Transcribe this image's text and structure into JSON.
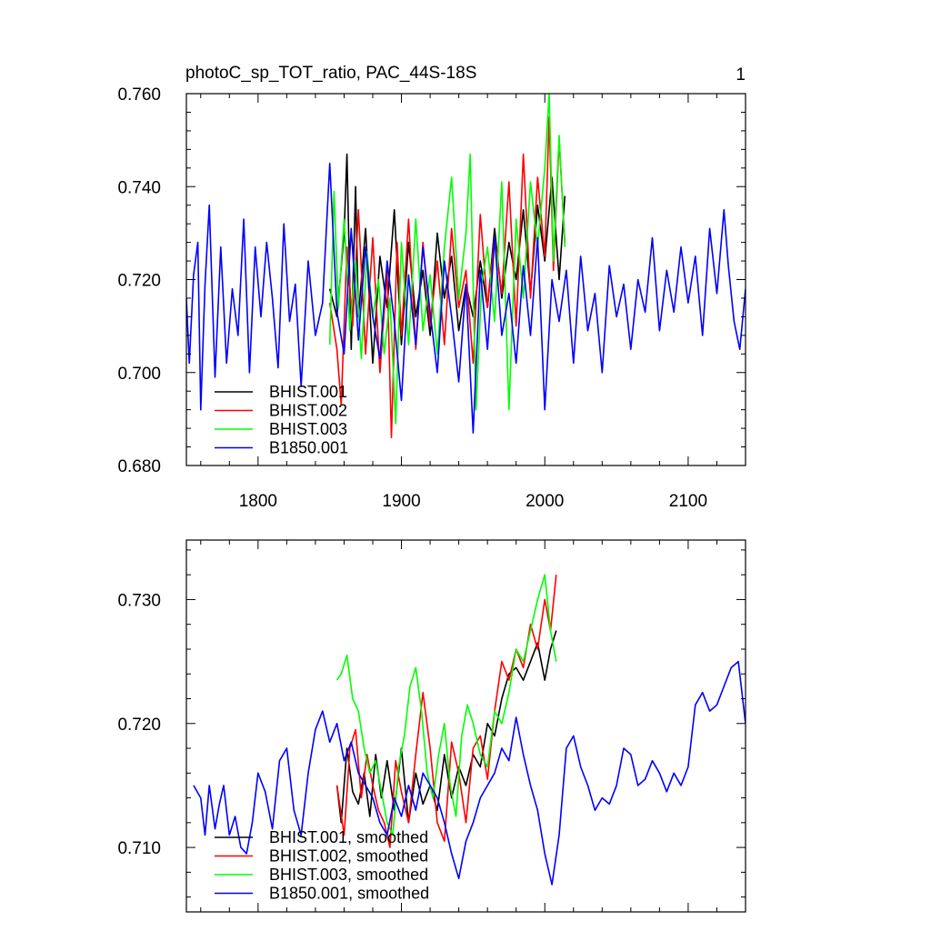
{
  "figure": {
    "panel_number": "1"
  },
  "chart_data": [
    {
      "type": "line",
      "title": "photoC_sp_TOT_ratio, PAC_44S-18S",
      "xlabel": "",
      "ylabel": "",
      "xlim": [
        1750,
        2140
      ],
      "ylim": [
        0.68,
        0.76
      ],
      "x_ticks": [
        1800,
        1900,
        2000,
        2100
      ],
      "x_tick_labels": [
        "1800",
        "1900",
        "2000",
        "2100"
      ],
      "y_ticks": [
        0.68,
        0.7,
        0.72,
        0.74,
        0.76
      ],
      "y_tick_labels": [
        "0.680",
        "0.700",
        "0.720",
        "0.740",
        "0.760"
      ],
      "grid": false,
      "legend_position": "bottom-left",
      "series": [
        {
          "name": "BHIST.001",
          "color": "#000000",
          "x": [
            1850,
            1855,
            1860,
            1862,
            1865,
            1868,
            1870,
            1875,
            1880,
            1885,
            1890,
            1895,
            1900,
            1905,
            1910,
            1915,
            1920,
            1925,
            1930,
            1935,
            1940,
            1945,
            1950,
            1955,
            1960,
            1965,
            1970,
            1975,
            1980,
            1985,
            1990,
            1995,
            2000,
            2005,
            2010,
            2014
          ],
          "values": [
            0.718,
            0.712,
            0.73,
            0.747,
            0.705,
            0.74,
            0.712,
            0.731,
            0.702,
            0.725,
            0.714,
            0.735,
            0.706,
            0.728,
            0.712,
            0.722,
            0.708,
            0.73,
            0.716,
            0.725,
            0.709,
            0.719,
            0.712,
            0.724,
            0.714,
            0.731,
            0.716,
            0.728,
            0.72,
            0.735,
            0.717,
            0.736,
            0.724,
            0.742,
            0.72,
            0.738
          ]
        },
        {
          "name": "BHIST.002",
          "color": "#ff0000",
          "x": [
            1850,
            1855,
            1858,
            1862,
            1866,
            1870,
            1875,
            1880,
            1885,
            1890,
            1893,
            1897,
            1900,
            1905,
            1910,
            1915,
            1920,
            1925,
            1930,
            1935,
            1940,
            1945,
            1950,
            1955,
            1960,
            1965,
            1970,
            1975,
            1980,
            1985,
            1990,
            1995,
            2000,
            2003,
            2006,
            2010,
            2014
          ],
          "values": [
            0.715,
            0.705,
            0.693,
            0.727,
            0.71,
            0.735,
            0.704,
            0.729,
            0.7,
            0.722,
            0.686,
            0.728,
            0.708,
            0.733,
            0.705,
            0.728,
            0.71,
            0.724,
            0.706,
            0.731,
            0.714,
            0.722,
            0.702,
            0.734,
            0.714,
            0.729,
            0.717,
            0.741,
            0.71,
            0.747,
            0.716,
            0.742,
            0.725,
            0.755,
            0.722,
            0.75,
            0.728
          ]
        },
        {
          "name": "BHIST.003",
          "color": "#00ff00",
          "x": [
            1850,
            1853,
            1856,
            1860,
            1864,
            1868,
            1872,
            1876,
            1880,
            1884,
            1888,
            1892,
            1896,
            1900,
            1905,
            1910,
            1915,
            1920,
            1925,
            1930,
            1935,
            1940,
            1945,
            1948,
            1952,
            1956,
            1960,
            1965,
            1970,
            1975,
            1980,
            1985,
            1990,
            1995,
            2000,
            2003,
            2006,
            2010,
            2014
          ],
          "values": [
            0.706,
            0.739,
            0.714,
            0.733,
            0.709,
            0.724,
            0.703,
            0.726,
            0.712,
            0.72,
            0.704,
            0.716,
            0.689,
            0.728,
            0.706,
            0.733,
            0.709,
            0.721,
            0.704,
            0.727,
            0.742,
            0.716,
            0.73,
            0.747,
            0.692,
            0.719,
            0.727,
            0.711,
            0.741,
            0.692,
            0.733,
            0.716,
            0.741,
            0.727,
            0.744,
            0.76,
            0.724,
            0.751,
            0.727
          ]
        },
        {
          "name": "B1850.001",
          "color": "#0000ff",
          "x": [
            1750,
            1752,
            1755,
            1758,
            1760,
            1763,
            1766,
            1770,
            1774,
            1778,
            1782,
            1786,
            1790,
            1794,
            1798,
            1802,
            1806,
            1810,
            1814,
            1818,
            1822,
            1826,
            1830,
            1835,
            1840,
            1845,
            1850,
            1855,
            1860,
            1865,
            1870,
            1875,
            1880,
            1885,
            1890,
            1895,
            1900,
            1905,
            1910,
            1915,
            1920,
            1925,
            1930,
            1935,
            1940,
            1945,
            1950,
            1955,
            1960,
            1965,
            1970,
            1975,
            1980,
            1985,
            1990,
            1995,
            2000,
            2005,
            2010,
            2015,
            2020,
            2025,
            2030,
            2035,
            2040,
            2045,
            2050,
            2055,
            2060,
            2065,
            2070,
            2075,
            2080,
            2085,
            2090,
            2095,
            2100,
            2105,
            2110,
            2115,
            2120,
            2125,
            2128,
            2132,
            2136,
            2140
          ],
          "values": [
            0.716,
            0.702,
            0.721,
            0.728,
            0.692,
            0.719,
            0.736,
            0.699,
            0.727,
            0.702,
            0.718,
            0.708,
            0.733,
            0.7,
            0.727,
            0.712,
            0.728,
            0.716,
            0.701,
            0.732,
            0.711,
            0.719,
            0.697,
            0.724,
            0.708,
            0.715,
            0.745,
            0.713,
            0.704,
            0.731,
            0.707,
            0.727,
            0.712,
            0.703,
            0.724,
            0.711,
            0.694,
            0.721,
            0.706,
            0.727,
            0.713,
            0.7,
            0.724,
            0.712,
            0.698,
            0.719,
            0.687,
            0.722,
            0.705,
            0.729,
            0.708,
            0.717,
            0.702,
            0.723,
            0.708,
            0.729,
            0.692,
            0.72,
            0.711,
            0.722,
            0.702,
            0.725,
            0.709,
            0.717,
            0.7,
            0.723,
            0.712,
            0.719,
            0.705,
            0.72,
            0.713,
            0.729,
            0.709,
            0.722,
            0.713,
            0.727,
            0.715,
            0.725,
            0.708,
            0.731,
            0.717,
            0.735,
            0.723,
            0.711,
            0.705,
            0.718
          ]
        }
      ]
    },
    {
      "type": "line",
      "title": "",
      "xlabel": "",
      "ylabel": "",
      "xlim": [
        1750,
        2140
      ],
      "ylim": [
        0.7048,
        0.7348
      ],
      "x_ticks": [
        1800,
        1900,
        2000,
        2100
      ],
      "x_tick_labels": [
        "",
        "",
        "",
        ""
      ],
      "y_ticks": [
        0.71,
        0.72,
        0.73
      ],
      "y_tick_labels": [
        "0.710",
        "0.720",
        "0.730"
      ],
      "grid": false,
      "legend_position": "bottom-left",
      "series": [
        {
          "name": "BHIST.001, smoothed",
          "color": "#000000",
          "x": [
            1855,
            1858,
            1862,
            1866,
            1870,
            1874,
            1878,
            1882,
            1886,
            1890,
            1895,
            1900,
            1905,
            1910,
            1915,
            1920,
            1925,
            1930,
            1935,
            1940,
            1945,
            1950,
            1955,
            1960,
            1965,
            1970,
            1975,
            1980,
            1985,
            1990,
            1995,
            2000,
            2004,
            2008
          ],
          "values": [
            0.715,
            0.712,
            0.718,
            0.7145,
            0.7135,
            0.716,
            0.7125,
            0.7175,
            0.714,
            0.717,
            0.713,
            0.718,
            0.712,
            0.716,
            0.7135,
            0.715,
            0.713,
            0.7175,
            0.714,
            0.7165,
            0.715,
            0.7175,
            0.7165,
            0.72,
            0.719,
            0.722,
            0.724,
            0.7245,
            0.7235,
            0.725,
            0.7265,
            0.7235,
            0.726,
            0.7275
          ]
        },
        {
          "name": "BHIST.002, smoothed",
          "color": "#ff0000",
          "x": [
            1855,
            1860,
            1864,
            1868,
            1872,
            1876,
            1880,
            1884,
            1888,
            1892,
            1896,
            1900,
            1905,
            1910,
            1915,
            1920,
            1925,
            1930,
            1935,
            1940,
            1945,
            1950,
            1955,
            1960,
            1965,
            1970,
            1975,
            1980,
            1985,
            1990,
            1995,
            2000,
            2004,
            2008
          ],
          "values": [
            0.715,
            0.711,
            0.718,
            0.7195,
            0.714,
            0.7175,
            0.715,
            0.713,
            0.712,
            0.71,
            0.717,
            0.7145,
            0.712,
            0.7175,
            0.7225,
            0.718,
            0.712,
            0.7105,
            0.7185,
            0.716,
            0.712,
            0.718,
            0.719,
            0.7155,
            0.721,
            0.725,
            0.7235,
            0.726,
            0.7245,
            0.728,
            0.726,
            0.73,
            0.7275,
            0.732
          ]
        },
        {
          "name": "BHIST.003, smoothed",
          "color": "#00ff00",
          "x": [
            1855,
            1858,
            1862,
            1866,
            1870,
            1874,
            1878,
            1882,
            1886,
            1890,
            1894,
            1898,
            1902,
            1906,
            1910,
            1914,
            1918,
            1922,
            1926,
            1930,
            1934,
            1938,
            1942,
            1946,
            1950,
            1955,
            1960,
            1965,
            1970,
            1975,
            1980,
            1985,
            1990,
            1995,
            2000,
            2004,
            2008
          ],
          "values": [
            0.7235,
            0.724,
            0.7255,
            0.722,
            0.721,
            0.718,
            0.716,
            0.717,
            0.7145,
            0.712,
            0.711,
            0.7165,
            0.719,
            0.723,
            0.7245,
            0.721,
            0.716,
            0.714,
            0.7175,
            0.72,
            0.715,
            0.7125,
            0.719,
            0.7215,
            0.72,
            0.7175,
            0.7165,
            0.721,
            0.72,
            0.7225,
            0.726,
            0.725,
            0.7275,
            0.73,
            0.732,
            0.7275,
            0.725
          ]
        },
        {
          "name": "B1850.001, smoothed",
          "color": "#0000ff",
          "x": [
            1755,
            1760,
            1763,
            1766,
            1770,
            1773,
            1776,
            1780,
            1784,
            1788,
            1792,
            1796,
            1800,
            1805,
            1810,
            1815,
            1820,
            1825,
            1830,
            1835,
            1840,
            1845,
            1850,
            1855,
            1860,
            1865,
            1870,
            1875,
            1880,
            1885,
            1890,
            1895,
            1900,
            1905,
            1910,
            1915,
            1920,
            1925,
            1930,
            1935,
            1940,
            1945,
            1950,
            1955,
            1960,
            1965,
            1970,
            1975,
            1980,
            1985,
            1990,
            1995,
            2000,
            2005,
            2010,
            2015,
            2020,
            2025,
            2030,
            2035,
            2040,
            2045,
            2050,
            2055,
            2060,
            2065,
            2070,
            2075,
            2080,
            2085,
            2090,
            2095,
            2100,
            2105,
            2110,
            2115,
            2120,
            2125,
            2130,
            2135,
            2140
          ],
          "values": [
            0.715,
            0.714,
            0.711,
            0.715,
            0.7115,
            0.7135,
            0.715,
            0.711,
            0.7125,
            0.71,
            0.7095,
            0.712,
            0.716,
            0.7145,
            0.7115,
            0.717,
            0.718,
            0.713,
            0.711,
            0.716,
            0.7195,
            0.721,
            0.7185,
            0.72,
            0.717,
            0.7185,
            0.716,
            0.715,
            0.714,
            0.712,
            0.711,
            0.714,
            0.7125,
            0.715,
            0.713,
            0.716,
            0.715,
            0.714,
            0.712,
            0.7095,
            0.7075,
            0.7105,
            0.712,
            0.714,
            0.715,
            0.716,
            0.718,
            0.717,
            0.7205,
            0.7175,
            0.715,
            0.713,
            0.7095,
            0.707,
            0.711,
            0.718,
            0.719,
            0.7165,
            0.715,
            0.713,
            0.714,
            0.7135,
            0.715,
            0.718,
            0.7175,
            0.715,
            0.7155,
            0.717,
            0.716,
            0.7145,
            0.716,
            0.715,
            0.7165,
            0.7215,
            0.7225,
            0.721,
            0.7215,
            0.723,
            0.7245,
            0.725,
            0.72
          ]
        }
      ]
    }
  ]
}
